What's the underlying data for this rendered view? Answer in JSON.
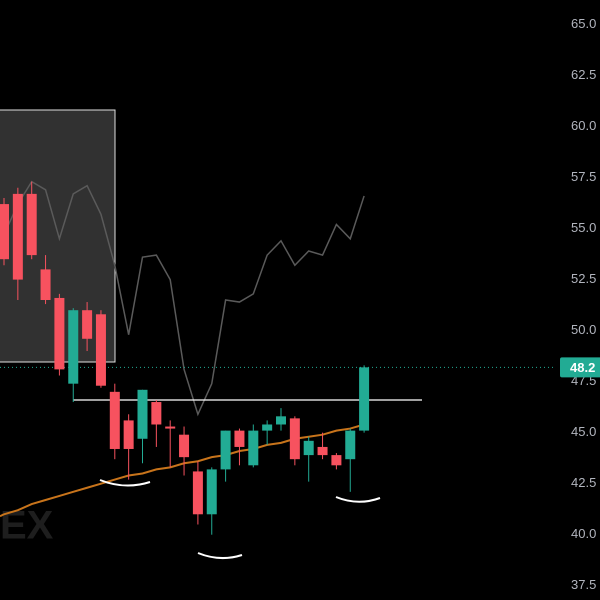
{
  "chart_data": {
    "type": "candlestick",
    "up_color": "#22ab94",
    "down_color": "#f7525f",
    "open": [
      56.2,
      56.7,
      56.7,
      53.0,
      51.6,
      47.4,
      51.0,
      50.8,
      47.0,
      45.6,
      44.7,
      46.5,
      45.3,
      44.9,
      43.1,
      41.0,
      43.2,
      45.1,
      43.4,
      45.1,
      45.4,
      45.7,
      43.9,
      44.3,
      43.9,
      43.7,
      45.1
    ],
    "high": [
      56.5,
      57.0,
      57.3,
      53.7,
      51.8,
      51.1,
      51.4,
      51.0,
      47.4,
      45.9,
      47.1,
      46.6,
      45.6,
      45.3,
      43.6,
      43.3,
      45.1,
      45.2,
      45.4,
      45.6,
      46.2,
      45.8,
      44.8,
      45.0,
      44.0,
      45.2,
      48.3
    ],
    "low": [
      53.2,
      51.5,
      53.5,
      51.3,
      47.8,
      46.5,
      49.0,
      47.2,
      43.7,
      42.7,
      43.5,
      44.3,
      43.3,
      42.9,
      40.5,
      40.0,
      42.6,
      43.4,
      43.3,
      44.4,
      45.1,
      43.4,
      42.6,
      43.7,
      43.2,
      42.1,
      45.0
    ],
    "close": [
      53.5,
      52.5,
      53.7,
      51.5,
      48.1,
      51.0,
      49.6,
      47.3,
      44.2,
      44.2,
      47.1,
      45.4,
      45.2,
      43.8,
      41.0,
      43.2,
      45.1,
      44.3,
      45.1,
      45.4,
      45.8,
      43.7,
      44.6,
      43.9,
      43.4,
      45.1,
      48.2
    ],
    "overlays": [
      {
        "color": "#5a5a5a",
        "values": [
          54.7,
          56.2,
          57.3,
          56.9,
          54.5,
          56.7,
          57.1,
          55.7,
          53.2,
          49.8,
          53.6,
          53.7,
          52.5,
          48.1,
          45.9,
          47.4,
          51.5,
          51.4,
          51.8,
          53.7,
          54.4,
          53.2,
          53.9,
          53.7,
          55.2,
          54.5,
          56.6
        ]
      },
      {
        "color": "#c8741b",
        "values": [
          41.0,
          41.2,
          41.5,
          41.7,
          41.9,
          42.1,
          42.3,
          42.5,
          42.7,
          42.9,
          43.0,
          43.2,
          43.3,
          43.5,
          43.6,
          43.8,
          43.9,
          44.1,
          44.2,
          44.4,
          44.5,
          44.7,
          44.8,
          44.9,
          45.1,
          45.2,
          45.4
        ]
      }
    ],
    "neckline": 46.6,
    "last_price": 48.2,
    "watermark": "EX",
    "ylim": [
      36.8,
      66.2
    ],
    "yticks": [
      {
        "value": 65,
        "label": "65.0"
      },
      {
        "value": 62.5,
        "label": "62.5"
      },
      {
        "value": 60,
        "label": "60.0"
      },
      {
        "value": 57.5,
        "label": "57.5"
      },
      {
        "value": 55,
        "label": "55.0"
      },
      {
        "value": 52.5,
        "label": "52.5"
      },
      {
        "value": 50,
        "label": "50.0"
      },
      {
        "value": 47.5,
        "label": "47.5"
      },
      {
        "value": 45,
        "label": "45.0"
      },
      {
        "value": 42.5,
        "label": "42.5"
      },
      {
        "value": 40,
        "label": "40.0"
      },
      {
        "value": 37.5,
        "label": "37.5"
      }
    ]
  }
}
